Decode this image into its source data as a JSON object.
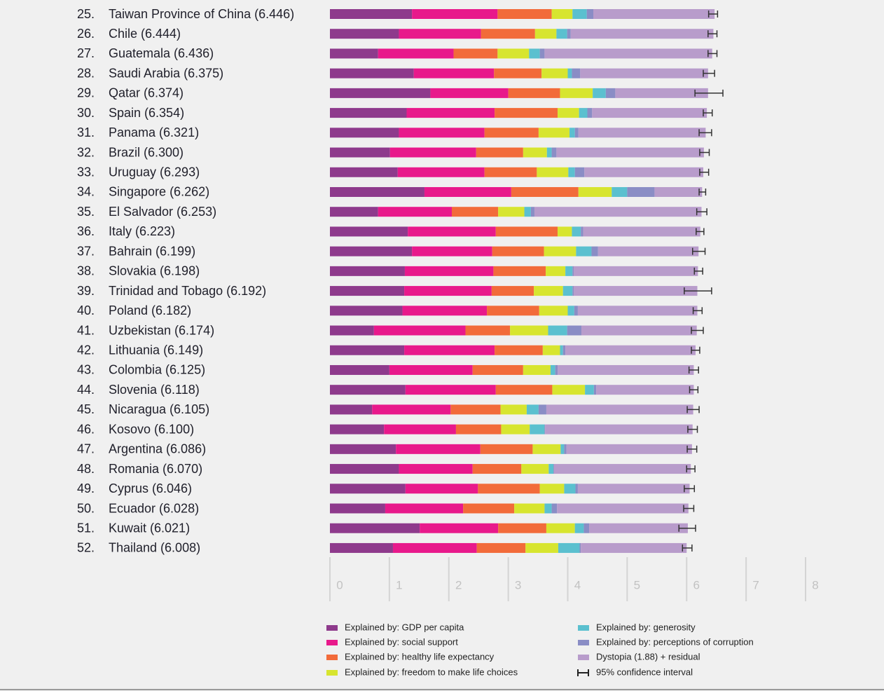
{
  "chart_data": {
    "type": "stacked-barh",
    "ranks": [
      "25.",
      "26.",
      "27.",
      "28.",
      "29.",
      "30.",
      "31.",
      "32.",
      "33.",
      "34.",
      "35.",
      "36.",
      "37.",
      "38.",
      "39.",
      "40.",
      "41.",
      "42.",
      "43.",
      "44.",
      "45.",
      "46.",
      "47.",
      "48.",
      "49.",
      "50.",
      "51.",
      "52."
    ],
    "categories": [
      "Taiwan Province of China (6.446)",
      "Chile (6.444)",
      "Guatemala (6.436)",
      "Saudi Arabia (6.375)",
      "Qatar (6.374)",
      "Spain (6.354)",
      "Panama (6.321)",
      "Brazil (6.300)",
      "Uruguay (6.293)",
      "Singapore (6.262)",
      "El Salvador (6.253)",
      "Italy (6.223)",
      "Bahrain (6.199)",
      "Slovakia (6.198)",
      "Trinidad and Tobago (6.192)",
      "Poland (6.182)",
      "Uzbekistan (6.174)",
      "Lithuania (6.149)",
      "Colombia (6.125)",
      "Slovenia (6.118)",
      "Nicaragua (6.105)",
      "Kosovo (6.100)",
      "Argentina (6.086)",
      "Romania (6.070)",
      "Cyprus (6.046)",
      "Ecuador (6.028)",
      "Kuwait (6.021)",
      "Thailand (6.008)"
    ],
    "series": [
      {
        "name": "Explained by: GDP per capita",
        "color": "#8e3a8c",
        "values": [
          1.38,
          1.16,
          0.81,
          1.41,
          1.69,
          1.29,
          1.16,
          1.01,
          1.14,
          1.59,
          0.81,
          1.31,
          1.38,
          1.26,
          1.25,
          1.22,
          0.74,
          1.25,
          1.0,
          1.27,
          0.71,
          0.91,
          1.11,
          1.16,
          1.27,
          0.93,
          1.51,
          1.06
        ]
      },
      {
        "name": "Explained by: social support",
        "color": "#e8198b",
        "values": [
          1.44,
          1.38,
          1.27,
          1.35,
          1.31,
          1.48,
          1.44,
          1.45,
          1.46,
          1.46,
          1.24,
          1.48,
          1.35,
          1.49,
          1.47,
          1.42,
          1.54,
          1.52,
          1.4,
          1.52,
          1.32,
          1.21,
          1.42,
          1.24,
          1.22,
          1.31,
          1.32,
          1.41
        ]
      },
      {
        "name": "Explained by: healthy life expectancy",
        "color": "#f26b3a",
        "values": [
          0.91,
          0.91,
          0.74,
          0.8,
          0.87,
          1.06,
          0.91,
          0.79,
          0.88,
          1.13,
          0.78,
          1.04,
          0.87,
          0.88,
          0.71,
          0.88,
          0.75,
          0.81,
          0.85,
          0.95,
          0.84,
          0.76,
          0.88,
          0.82,
          1.04,
          0.86,
          0.81,
          0.82
        ]
      },
      {
        "name": "Explained by: freedom to make life choices",
        "color": "#d7e52f",
        "values": [
          0.35,
          0.36,
          0.53,
          0.44,
          0.55,
          0.36,
          0.52,
          0.4,
          0.53,
          0.56,
          0.44,
          0.24,
          0.54,
          0.33,
          0.49,
          0.48,
          0.64,
          0.29,
          0.46,
          0.55,
          0.44,
          0.48,
          0.47,
          0.46,
          0.41,
          0.51,
          0.48,
          0.55
        ]
      },
      {
        "name": "Explained by: generosity",
        "color": "#5bc0cf",
        "values": [
          0.24,
          0.18,
          0.18,
          0.07,
          0.22,
          0.14,
          0.09,
          0.08,
          0.11,
          0.26,
          0.11,
          0.15,
          0.26,
          0.12,
          0.16,
          0.11,
          0.32,
          0.05,
          0.08,
          0.15,
          0.2,
          0.25,
          0.06,
          0.08,
          0.19,
          0.12,
          0.15,
          0.36
        ]
      },
      {
        "name": "Explained by: perceptions of corruption",
        "color": "#8a8dc5",
        "values": [
          0.11,
          0.06,
          0.08,
          0.14,
          0.16,
          0.08,
          0.06,
          0.08,
          0.16,
          0.46,
          0.06,
          0.04,
          0.11,
          0.02,
          0.02,
          0.06,
          0.24,
          0.04,
          0.04,
          0.04,
          0.13,
          0.01,
          0.04,
          0.01,
          0.04,
          0.09,
          0.09,
          0.02
        ]
      },
      {
        "name": "Dystopia (1.88) + residual",
        "color": "#b89ccb",
        "values": [
          2.04,
          2.4,
          2.82,
          2.15,
          1.56,
          1.93,
          2.14,
          2.48,
          2.0,
          0.8,
          2.81,
          1.97,
          1.69,
          2.09,
          2.08,
          2.01,
          1.94,
          2.19,
          2.29,
          1.64,
          2.47,
          2.48,
          2.11,
          2.3,
          1.88,
          2.21,
          1.66,
          1.78
        ]
      }
    ],
    "ci_label": "95% confidence interval",
    "ci_low": [
      6.37,
      6.36,
      6.36,
      6.28,
      6.14,
      6.28,
      6.21,
      6.22,
      6.22,
      6.21,
      6.17,
      6.16,
      6.1,
      6.13,
      5.96,
      6.11,
      6.08,
      6.08,
      6.04,
      6.05,
      6.01,
      6.02,
      6.01,
      6.0,
      5.96,
      5.95,
      5.87,
      5.93
    ],
    "ci_high": [
      6.52,
      6.51,
      6.51,
      6.47,
      6.61,
      6.43,
      6.42,
      6.38,
      6.37,
      6.32,
      6.34,
      6.29,
      6.31,
      6.27,
      6.42,
      6.26,
      6.28,
      6.22,
      6.2,
      6.19,
      6.21,
      6.18,
      6.17,
      6.14,
      6.13,
      6.12,
      6.15,
      6.09
    ],
    "xlim": [
      0,
      8
    ],
    "xticks": [
      0,
      1,
      2,
      3,
      4,
      5,
      6,
      7,
      8
    ],
    "grid": true
  }
}
